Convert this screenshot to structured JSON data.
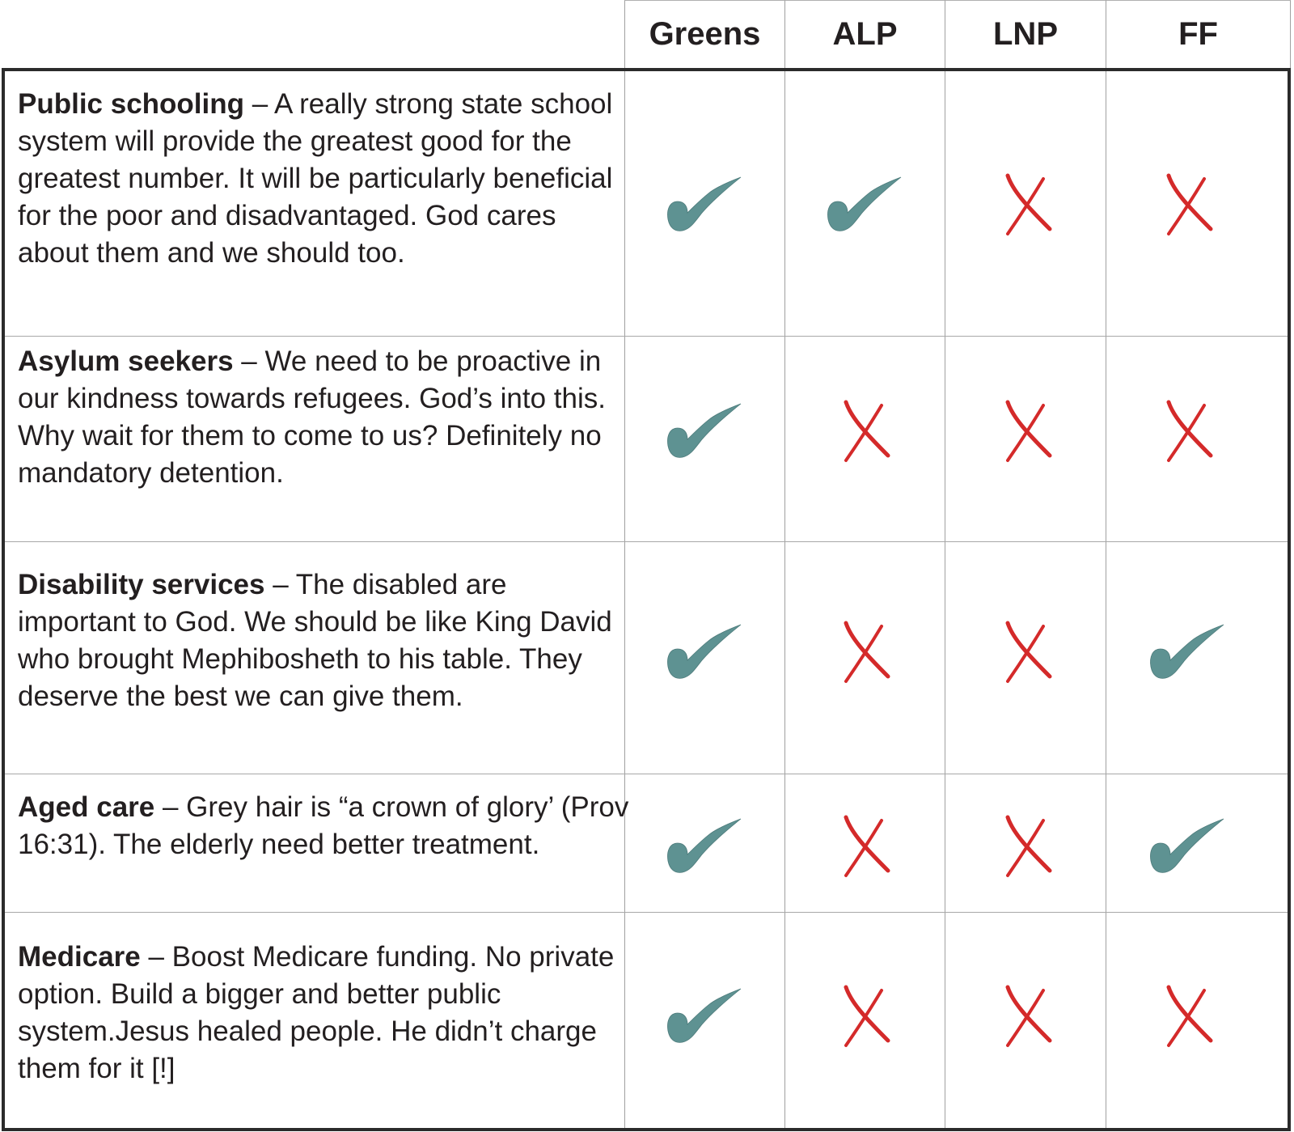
{
  "colors": {
    "check": "#5e9292",
    "cross": "#d42a2a",
    "border": "#2b2b2b",
    "grid": "#a0a0a0",
    "text": "#231f20"
  },
  "columns": [
    "Greens",
    "ALP",
    "LNP",
    "FF"
  ],
  "rows": [
    {
      "topic": "Public schooling",
      "text": " – A really strong state school system will provide the greatest good for the greatest number. It will be particularly beneficial for the poor and disadvantaged. God cares about them and we should too.",
      "marks": [
        "check",
        "check",
        "cross",
        "cross"
      ]
    },
    {
      "topic": "Asylum seekers",
      "text": " – We need to be proactive in our kindness towards refugees. God’s into this. Why wait for them to come to us? Definitely no mandatory detention.",
      "marks": [
        "check",
        "cross",
        "cross",
        "cross"
      ]
    },
    {
      "topic": "Disability services",
      "text": " – The disabled are important to God. We should be like King David who brought Mephibosheth to his table. They deserve the best we can give them.",
      "marks": [
        "check",
        "cross",
        "cross",
        "check"
      ]
    },
    {
      "topic": "Aged care",
      "text": " – Grey hair is “a crown of glory’ (Prov 16:31). The elderly need better treatment.",
      "marks": [
        "check",
        "cross",
        "cross",
        "check"
      ]
    },
    {
      "topic": "Medicare",
      "text": " – Boost Medicare funding. No private option. Build a bigger and better public system.Jesus healed people. He didn’t charge them for it [!]",
      "marks": [
        "check",
        "cross",
        "cross",
        "cross"
      ]
    }
  ]
}
